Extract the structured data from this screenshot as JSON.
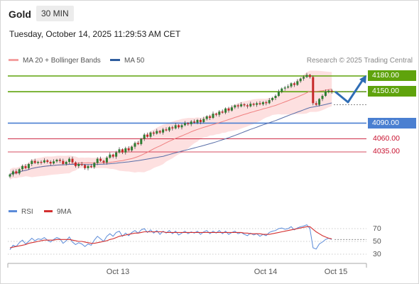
{
  "header": {
    "instrument": "Gold",
    "timeframe": "30 MIN",
    "timestamp": "Tuesday, October 14, 2025 11:29:53 AM CET"
  },
  "legend": {
    "ma20_label": "MA 20 + Bollinger Bands",
    "ma50_label": "MA 50",
    "credit": "Research © 2025 Trading Central",
    "rsi_label": "RSI",
    "ma9_label": "9MA"
  },
  "colors": {
    "resistance": "#5fa30c",
    "pivot": "#4a7fd1",
    "support": "#c8102e",
    "candle_up": "#2e7d32",
    "candle_down": "#c62828",
    "bollinger_fill": "#fde0e0",
    "ma20": "#f08080",
    "ma50": "#5a6fa8",
    "forecast_arrow": "#2f6db5",
    "rsi": "#5b8bd9",
    "rsi_ma": "#d32f2f"
  },
  "chart_data": [
    {
      "type": "candlestick",
      "title": "Gold 30 MIN",
      "series": [
        {
          "name": "MA 20 + Bollinger Bands"
        },
        {
          "name": "MA 50"
        }
      ],
      "x_tick_labels": [
        "Oct 13",
        "Oct 14",
        "Oct 15"
      ],
      "ylim": [
        3985,
        4195
      ],
      "candles_close": [
        3992,
        3998,
        3994,
        4002,
        4008,
        4004,
        4012,
        4018,
        4014,
        4016,
        4015,
        4019,
        4016,
        4013,
        4017,
        4020,
        4018,
        4012,
        4016,
        4022,
        4015,
        4008,
        4012,
        4010,
        4004,
        4008,
        4006,
        4014,
        4022,
        4018,
        4015,
        4024,
        4030,
        4026,
        4034,
        4040,
        4034,
        4042,
        4038,
        4045,
        4052,
        4050,
        4060,
        4068,
        4064,
        4072,
        4070,
        4075,
        4072,
        4078,
        4076,
        4082,
        4080,
        4086,
        4082,
        4086,
        4090,
        4088,
        4093,
        4091,
        4096,
        4092,
        4098,
        4103,
        4100,
        4108,
        4106,
        4112,
        4110,
        4118,
        4114,
        4120,
        4124,
        4122,
        4126,
        4124,
        4122,
        4127,
        4125,
        4128,
        4126,
        4130,
        4128,
        4134,
        4138,
        4142,
        4150,
        4156,
        4158,
        4160,
        4166,
        4163,
        4170,
        4175,
        4178,
        4182,
        4178,
        4128,
        4125,
        4136,
        4142,
        4150,
        4152,
        4150
      ],
      "levels": [
        {
          "label": "4180.00",
          "value": 4180,
          "kind": "resistance"
        },
        {
          "label": "4150.00",
          "value": 4150,
          "kind": "resistance"
        },
        {
          "label": "4090.00",
          "value": 4090,
          "kind": "pivot"
        },
        {
          "label": "4060.00",
          "value": 4060,
          "kind": "support"
        },
        {
          "label": "4035.00",
          "value": 4035,
          "kind": "support"
        }
      ],
      "forecast": [
        4150,
        4130,
        4175
      ]
    },
    {
      "type": "line",
      "title": "RSI",
      "series": [
        {
          "name": "RSI",
          "values": [
            37,
            44,
            42,
            48,
            52,
            46,
            50,
            55,
            51,
            54,
            53,
            56,
            52,
            49,
            53,
            56,
            54,
            47,
            51,
            57,
            49,
            45,
            48,
            46,
            42,
            46,
            44,
            52,
            58,
            54,
            50,
            58,
            62,
            58,
            64,
            66,
            58,
            63,
            59,
            64,
            67,
            63,
            68,
            70,
            64,
            68,
            63,
            67,
            61,
            66,
            63,
            67,
            62,
            66,
            60,
            63,
            66,
            62,
            65,
            63,
            66,
            61,
            65,
            67,
            62,
            66,
            63,
            67,
            62,
            66,
            61,
            64,
            66,
            62,
            64,
            61,
            59,
            63,
            60,
            62,
            58,
            61,
            59,
            64,
            66,
            67,
            70,
            71,
            69,
            70,
            73,
            68,
            71,
            73,
            74,
            76,
            70,
            40,
            38,
            46,
            49,
            53,
            55,
            53
          ]
        },
        {
          "name": "9MA",
          "values": [
            40,
            41,
            42,
            43,
            44,
            45,
            47,
            48,
            49,
            50,
            51,
            52,
            52,
            52,
            52,
            53,
            53,
            53,
            53,
            53,
            52,
            51,
            50,
            50,
            49,
            48,
            47,
            47,
            48,
            49,
            50,
            51,
            53,
            54,
            56,
            58,
            59,
            60,
            61,
            62,
            63,
            63,
            64,
            65,
            65,
            65,
            65,
            65,
            65,
            65,
            64,
            64,
            64,
            64,
            64,
            64,
            64,
            64,
            64,
            64,
            64,
            64,
            64,
            64,
            64,
            64,
            64,
            64,
            64,
            64,
            64,
            64,
            64,
            64,
            64,
            63,
            63,
            62,
            62,
            62,
            62,
            61,
            61,
            61,
            62,
            63,
            64,
            65,
            66,
            67,
            68,
            69,
            70,
            71,
            72,
            73,
            73,
            69,
            65,
            62,
            59,
            57,
            55,
            54
          ]
        }
      ],
      "y_tick_labels": [
        "70",
        "50",
        "30"
      ],
      "ylim": [
        20,
        85
      ]
    }
  ]
}
